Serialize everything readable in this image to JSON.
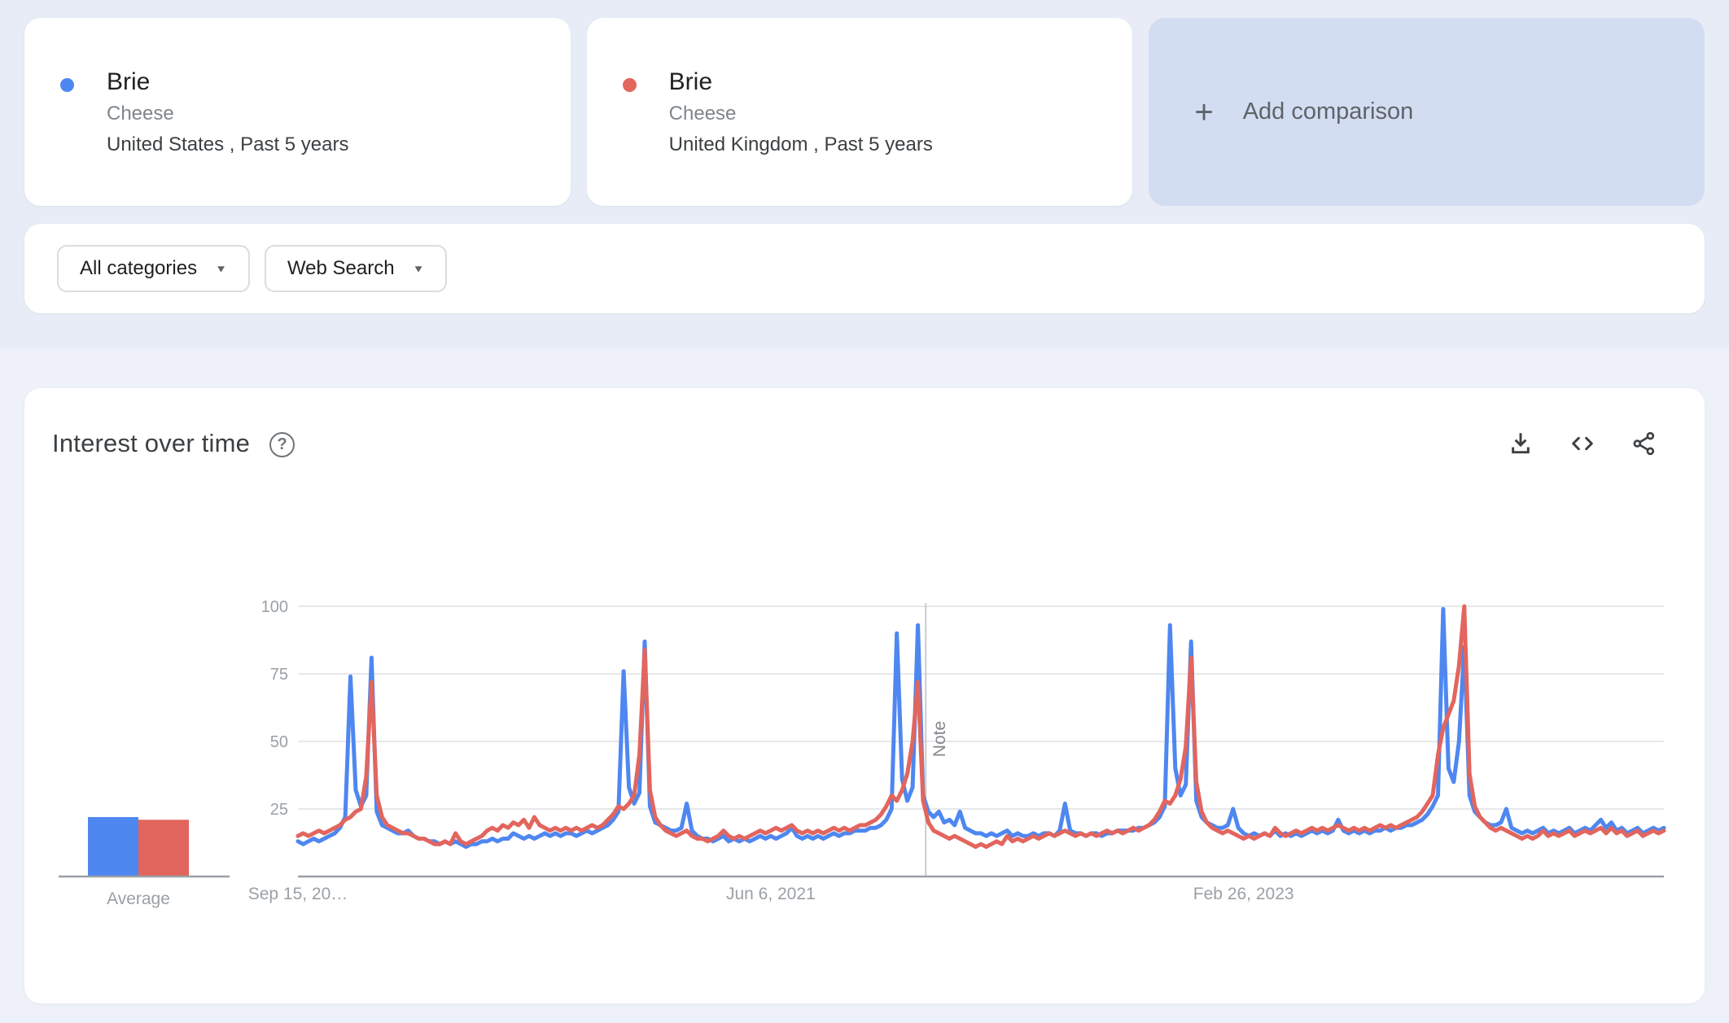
{
  "comparison_cards": [
    {
      "term": "Brie",
      "topic": "Cheese",
      "scope": "United States , Past 5 years",
      "color": "#4e87f0"
    },
    {
      "term": "Brie",
      "topic": "Cheese",
      "scope": "United Kingdom , Past 5 years",
      "color": "#e2655e"
    }
  ],
  "add_comparison": {
    "plus_glyph": "+",
    "label": "Add comparison"
  },
  "filters": {
    "category": {
      "label": "All categories",
      "arrow_glyph": "▼"
    },
    "search_type": {
      "label": "Web Search",
      "arrow_glyph": "▼"
    }
  },
  "panel": {
    "title": "Interest over time",
    "help_glyph": "?"
  },
  "action_icons": {
    "download": "download-icon",
    "embed": "code-embed-icon",
    "share": "share-icon"
  },
  "chart_data": {
    "type": "line",
    "title": "Interest over time",
    "x_start_date": "Sep 15, 2019",
    "x_tick_labels": [
      {
        "week": 0,
        "label": "Sep 15, 20…"
      },
      {
        "week": 90,
        "label": "Jun 6, 2021"
      },
      {
        "week": 180,
        "label": "Feb 26, 2023"
      }
    ],
    "y_ticks": [
      25,
      50,
      75,
      100
    ],
    "ylim": [
      0,
      100
    ],
    "grid": true,
    "note_marker": {
      "week": 119.5,
      "label": "Note"
    },
    "average_label": "Average",
    "series": [
      {
        "name": "Brie (United States)",
        "color": "#4e87f0",
        "average": 22,
        "values": [
          13,
          12,
          13,
          14,
          13,
          14,
          15,
          16,
          18,
          22,
          74,
          32,
          26,
          30,
          81,
          24,
          19,
          18,
          17,
          16,
          16,
          17,
          15,
          14,
          14,
          13,
          13,
          12,
          13,
          12,
          13,
          12,
          11,
          12,
          12,
          13,
          13,
          14,
          13,
          14,
          14,
          16,
          15,
          14,
          15,
          14,
          15,
          16,
          15,
          16,
          15,
          16,
          16,
          15,
          16,
          17,
          16,
          17,
          18,
          19,
          21,
          24,
          76,
          33,
          27,
          31,
          87,
          26,
          20,
          19,
          18,
          17,
          17,
          18,
          27,
          17,
          15,
          14,
          14,
          13,
          14,
          15,
          13,
          14,
          13,
          14,
          13,
          14,
          15,
          14,
          15,
          14,
          15,
          16,
          18,
          15,
          14,
          15,
          14,
          15,
          14,
          15,
          16,
          15,
          16,
          16,
          17,
          17,
          17,
          18,
          18,
          19,
          21,
          25,
          90,
          36,
          28,
          33,
          93,
          30,
          24,
          22,
          24,
          20,
          21,
          19,
          24,
          18,
          17,
          16,
          16,
          15,
          16,
          15,
          16,
          17,
          15,
          16,
          15,
          15,
          16,
          15,
          16,
          16,
          15,
          17,
          27,
          17,
          16,
          16,
          15,
          16,
          16,
          15,
          16,
          16,
          17,
          17,
          17,
          17,
          18,
          18,
          19,
          20,
          22,
          26,
          93,
          40,
          30,
          34,
          87,
          28,
          22,
          20,
          19,
          18,
          18,
          19,
          25,
          18,
          16,
          15,
          16,
          15,
          16,
          15,
          17,
          15,
          16,
          15,
          16,
          15,
          16,
          17,
          16,
          17,
          16,
          17,
          21,
          17,
          16,
          17,
          16,
          17,
          16,
          17,
          17,
          18,
          17,
          18,
          18,
          19,
          19,
          20,
          21,
          23,
          26,
          30,
          99,
          40,
          35,
          50,
          85,
          30,
          24,
          22,
          20,
          19,
          19,
          20,
          25,
          18,
          17,
          16,
          17,
          16,
          17,
          18,
          16,
          17,
          16,
          17,
          18,
          16,
          17,
          18,
          17,
          19,
          21,
          18,
          20,
          17,
          18,
          16,
          17,
          18,
          16,
          17,
          18,
          17,
          18
        ]
      },
      {
        "name": "Brie (United Kingdom)",
        "color": "#e2655e",
        "average": 21,
        "values": [
          15,
          16,
          15,
          16,
          17,
          16,
          17,
          18,
          19,
          21,
          22,
          24,
          25,
          37,
          72,
          30,
          22,
          19,
          18,
          17,
          16,
          16,
          15,
          14,
          14,
          13,
          12,
          12,
          13,
          12,
          16,
          13,
          12,
          13,
          14,
          15,
          17,
          18,
          17,
          19,
          18,
          20,
          19,
          21,
          18,
          22,
          19,
          18,
          17,
          18,
          17,
          18,
          17,
          18,
          17,
          18,
          19,
          18,
          19,
          21,
          23,
          26,
          25,
          27,
          30,
          45,
          84,
          32,
          22,
          19,
          17,
          16,
          15,
          16,
          17,
          15,
          14,
          14,
          13,
          14,
          15,
          17,
          15,
          14,
          15,
          14,
          15,
          16,
          17,
          16,
          17,
          18,
          17,
          18,
          19,
          17,
          16,
          17,
          16,
          17,
          16,
          17,
          18,
          17,
          18,
          17,
          18,
          19,
          19,
          20,
          21,
          23,
          26,
          30,
          28,
          32,
          38,
          50,
          72,
          28,
          20,
          17,
          16,
          15,
          14,
          15,
          14,
          13,
          12,
          11,
          12,
          11,
          12,
          13,
          12,
          15,
          13,
          14,
          13,
          14,
          15,
          14,
          15,
          16,
          15,
          16,
          17,
          16,
          15,
          16,
          15,
          16,
          15,
          16,
          17,
          16,
          17,
          16,
          17,
          18,
          17,
          18,
          19,
          21,
          24,
          28,
          27,
          30,
          36,
          48,
          81,
          35,
          24,
          20,
          18,
          17,
          16,
          17,
          16,
          15,
          14,
          15,
          14,
          15,
          16,
          15,
          18,
          16,
          15,
          16,
          17,
          16,
          17,
          18,
          17,
          18,
          17,
          18,
          19,
          18,
          17,
          18,
          17,
          18,
          17,
          18,
          19,
          18,
          19,
          18,
          19,
          20,
          21,
          22,
          24,
          27,
          30,
          45,
          55,
          60,
          65,
          78,
          100,
          38,
          26,
          22,
          20,
          18,
          17,
          18,
          17,
          16,
          15,
          14,
          15,
          14,
          15,
          17,
          15,
          16,
          15,
          16,
          17,
          15,
          16,
          17,
          16,
          17,
          18,
          16,
          18,
          16,
          17,
          15,
          16,
          17,
          15,
          16,
          17,
          16,
          17
        ]
      }
    ],
    "style": {
      "grid_color": "#e7e8ea",
      "axis_color": "#9aa0a6",
      "tick_label_color": "#9aa0a6",
      "note_line_color": "#c9ccd0",
      "note_text_color": "#85898e"
    }
  }
}
